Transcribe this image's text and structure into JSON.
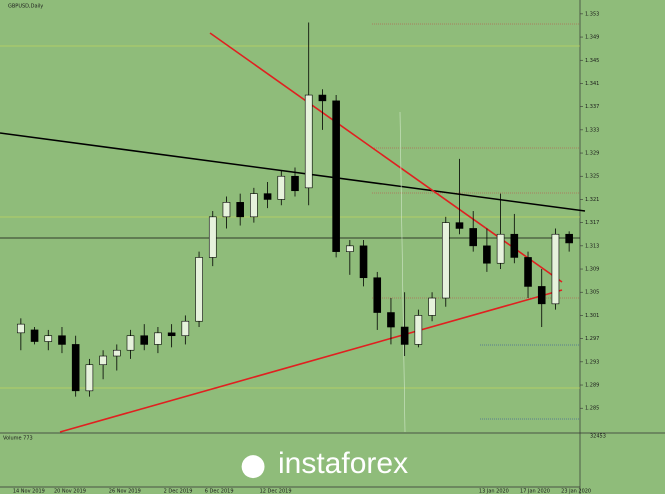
{
  "chart_data": {
    "type": "candlestick",
    "title": "GBPUSD,Daily",
    "volume_label": "Volume 773",
    "volume_value_label": "32453",
    "watermark": "instaforex",
    "categories": [
      "14 Nov 2019",
      null,
      null,
      "20 Nov 2019",
      null,
      null,
      null,
      "26 Nov 2019",
      null,
      null,
      null,
      "2 Dec 2019",
      null,
      null,
      "6 Dec 2019",
      null,
      null,
      null,
      "12 Dec 2019",
      null,
      null,
      null,
      null,
      null,
      null,
      null,
      null,
      null,
      null,
      null,
      null,
      null,
      null,
      null,
      "13 Jan 2020",
      null,
      null,
      "17 Jan 2020",
      null,
      null,
      "23 Jan 2020"
    ],
    "open": [
      1.298,
      1.2985,
      1.2965,
      1.2975,
      1.296,
      1.288,
      1.2925,
      1.294,
      1.295,
      1.2975,
      1.296,
      1.298,
      1.2975,
      1.3,
      1.311,
      1.318,
      1.3205,
      1.318,
      1.322,
      1.321,
      1.325,
      1.323,
      1.339,
      1.338,
      1.312,
      1.313,
      1.3075,
      1.3015,
      1.299,
      1.296,
      1.301,
      1.304,
      1.317,
      1.316,
      1.313,
      1.31,
      1.315,
      1.311,
      1.306,
      1.303,
      1.315
    ],
    "high": [
      1.3005,
      1.299,
      1.2985,
      1.299,
      1.2975,
      1.2935,
      1.295,
      1.296,
      1.2985,
      1.2995,
      1.299,
      1.2995,
      1.301,
      1.312,
      1.319,
      1.3215,
      1.322,
      1.323,
      1.324,
      1.326,
      1.3265,
      1.3515,
      1.34,
      1.339,
      1.314,
      1.314,
      1.3085,
      1.304,
      1.305,
      1.302,
      1.305,
      1.318,
      1.328,
      1.319,
      1.316,
      1.322,
      1.3185,
      1.312,
      1.309,
      1.316,
      1.3155
    ],
    "low": [
      1.295,
      1.296,
      1.295,
      1.2945,
      1.287,
      1.287,
      1.29,
      1.2915,
      1.2935,
      1.295,
      1.2945,
      1.2955,
      1.296,
      1.299,
      1.3095,
      1.316,
      1.3165,
      1.317,
      1.3195,
      1.32,
      1.3215,
      1.32,
      1.333,
      1.311,
      1.308,
      1.306,
      1.2985,
      1.296,
      1.294,
      1.2955,
      1.3,
      1.3025,
      1.315,
      1.312,
      1.3085,
      1.309,
      1.31,
      1.304,
      1.299,
      1.302,
      1.312
    ],
    "close": [
      1.2995,
      1.2965,
      1.2975,
      1.296,
      1.288,
      1.2925,
      1.294,
      1.295,
      1.2975,
      1.296,
      1.298,
      1.2975,
      1.3,
      1.311,
      1.318,
      1.3205,
      1.318,
      1.322,
      1.321,
      1.325,
      1.3225,
      1.339,
      1.338,
      1.312,
      1.313,
      1.3075,
      1.3015,
      1.299,
      1.296,
      1.301,
      1.304,
      1.317,
      1.316,
      1.313,
      1.31,
      1.315,
      1.311,
      1.306,
      1.303,
      1.315,
      1.3135
    ],
    "up_color": "#e6f2dc",
    "down_color": "#000000",
    "ylim": [
      1.2809,
      1.3547
    ],
    "yticks": [
      1.353,
      1.349,
      1.345,
      1.341,
      1.337,
      1.333,
      1.329,
      1.325,
      1.321,
      1.317,
      1.313,
      1.309,
      1.305,
      1.301,
      1.297,
      1.293,
      1.289,
      1.285
    ]
  }
}
